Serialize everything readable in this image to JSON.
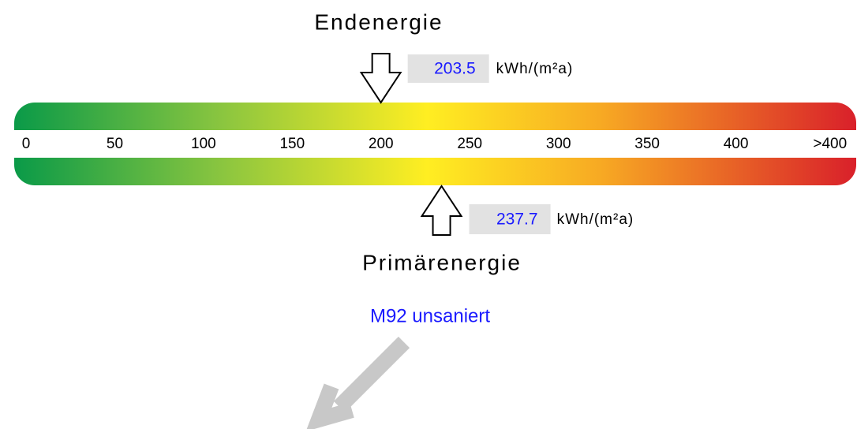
{
  "chart_data": {
    "type": "energy-scale",
    "xlim": [
      0,
      470
    ],
    "xticks": [
      0,
      50,
      100,
      150,
      200,
      250,
      300,
      350,
      400,
      {
        "value": 453,
        "label": ">400"
      }
    ],
    "final": {
      "label": "Endenergie",
      "value": 203.5,
      "unit": "kWh/(m²a)"
    },
    "primary": {
      "label": "Primärenergie",
      "value": 237.7,
      "unit": "kWh/(m²a)"
    },
    "caption": "M92 unsaniert"
  }
}
